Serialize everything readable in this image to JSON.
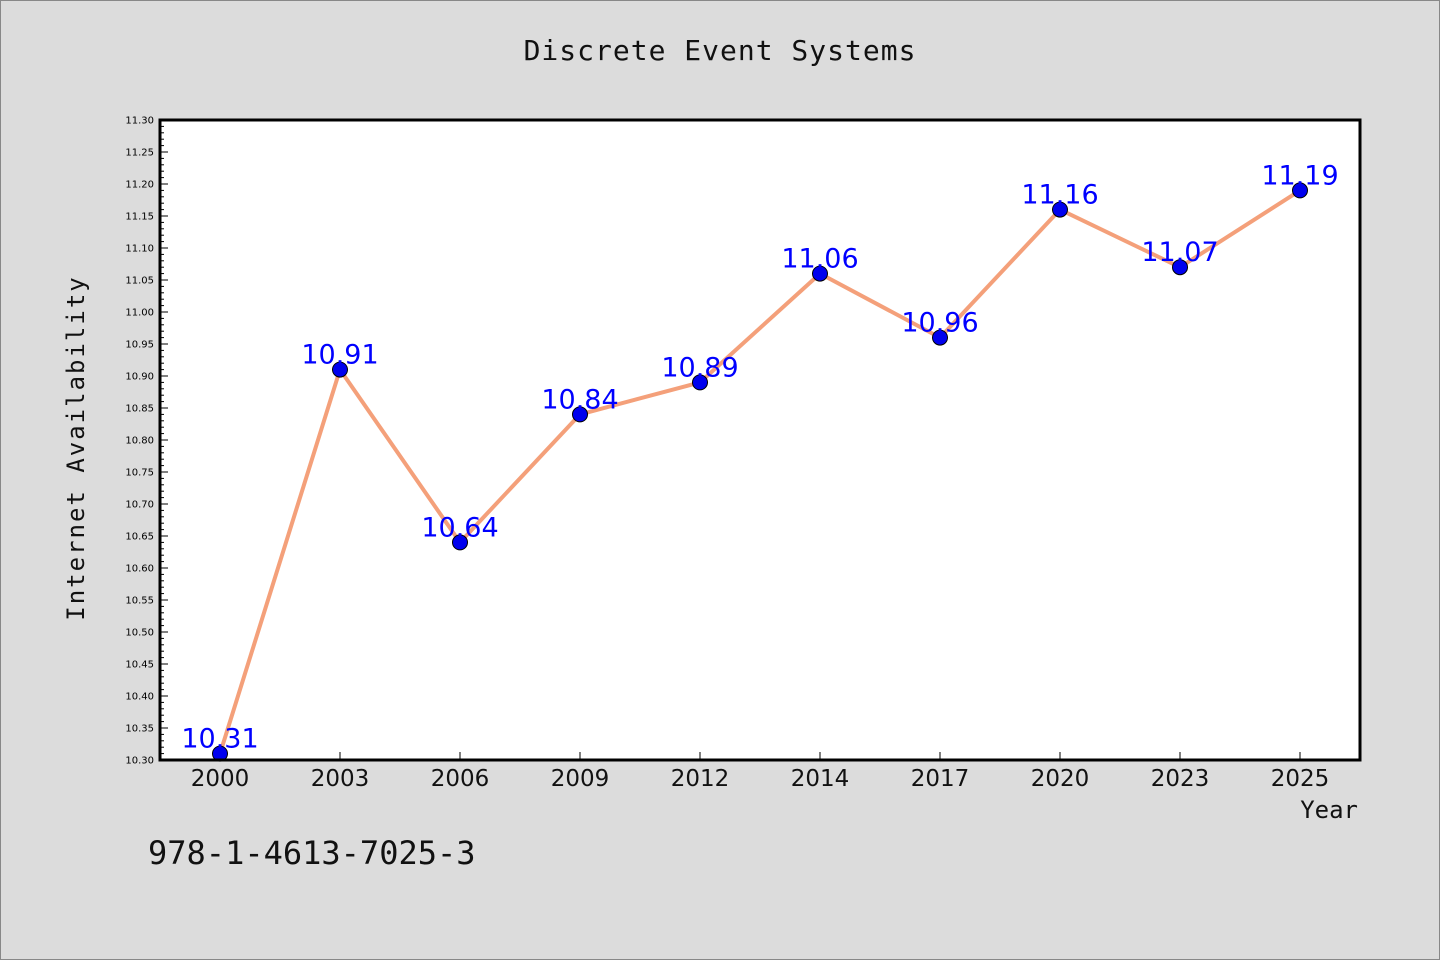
{
  "chart_data": {
    "type": "line",
    "title": "Discrete Event Systems",
    "xlabel": "Year",
    "ylabel": "Internet Availability",
    "categories": [
      "2000",
      "2003",
      "2006",
      "2009",
      "2012",
      "2014",
      "2017",
      "2020",
      "2023",
      "2025"
    ],
    "series": [
      {
        "values": [
          10.31,
          10.91,
          10.64,
          10.84,
          10.89,
          11.06,
          10.96,
          11.16,
          11.07,
          11.19
        ]
      }
    ],
    "ylim": [
      10.3,
      11.3
    ],
    "ytick_step": 0.05,
    "grid": false,
    "line_color": "#f4a07a",
    "marker_color": "#0000ee",
    "label_color": "#0000ff"
  },
  "footer": {
    "isbn": "978-1-4613-7025-3"
  }
}
